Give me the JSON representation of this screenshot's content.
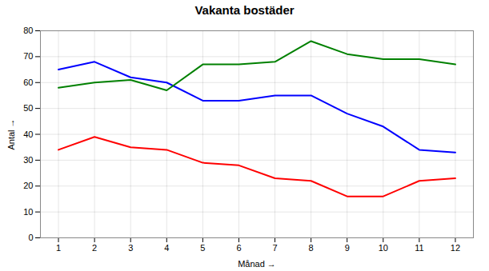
{
  "chart_data": {
    "type": "line",
    "title": "Vakanta bostäder",
    "xlabel": "Månad",
    "ylabel": "Antal",
    "x": [
      1,
      2,
      3,
      4,
      5,
      6,
      7,
      8,
      9,
      10,
      11,
      12
    ],
    "series": [
      {
        "color": "#0000FF",
        "values": [
          65,
          68,
          62,
          60,
          53,
          53,
          55,
          55,
          48,
          43,
          34,
          33
        ]
      },
      {
        "color": "#008000",
        "values": [
          58,
          60,
          61,
          57,
          67,
          67,
          68,
          76,
          71,
          69,
          69,
          67
        ]
      },
      {
        "color": "#FF0000",
        "values": [
          34,
          39,
          35,
          34,
          29,
          28,
          23,
          22,
          16,
          16,
          22,
          23
        ]
      }
    ],
    "xlim": [
      0.5,
      12.5
    ],
    "ylim": [
      0,
      80
    ],
    "xticks": [
      1,
      2,
      3,
      4,
      5,
      6,
      7,
      8,
      9,
      10,
      11,
      12
    ],
    "yticks": [
      0,
      10,
      20,
      30,
      40,
      50,
      60,
      70,
      80
    ],
    "grid": true
  }
}
